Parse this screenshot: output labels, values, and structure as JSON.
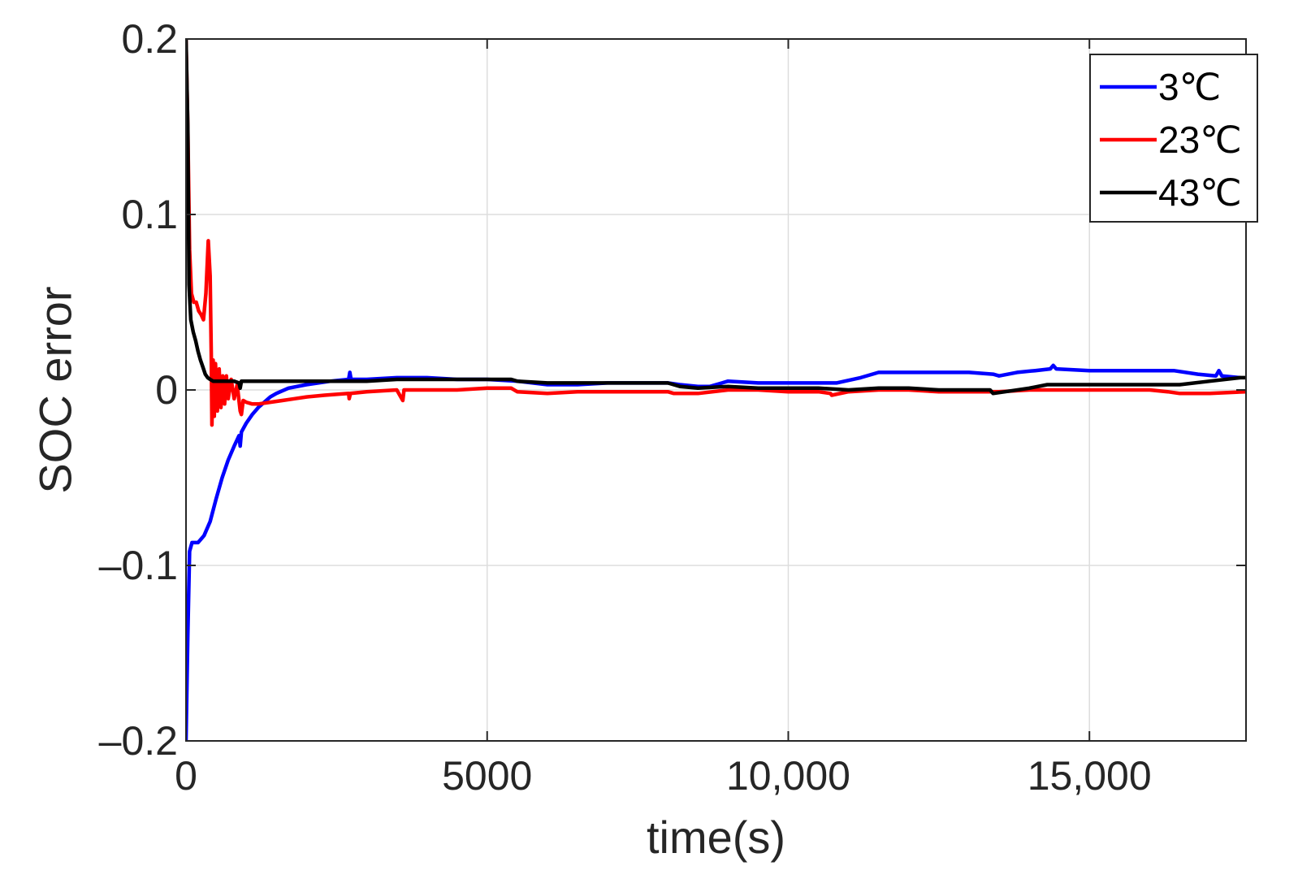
{
  "chart_data": {
    "type": "line",
    "title": "",
    "xlabel": "time(s)",
    "ylabel": "SOC error",
    "xlim": [
      0,
      17600
    ],
    "ylim": [
      -0.2,
      0.2
    ],
    "grid": true,
    "legend_position": "top-right",
    "x_ticks": [
      {
        "value": 0,
        "label": "0"
      },
      {
        "value": 5000,
        "label": "5000"
      },
      {
        "value": 10000,
        "label": "10,000"
      },
      {
        "value": 15000,
        "label": "15,000"
      }
    ],
    "y_ticks": [
      {
        "value": 0.2,
        "label": "0.2"
      },
      {
        "value": 0.1,
        "label": "0.1"
      },
      {
        "value": 0,
        "label": "0"
      },
      {
        "value": -0.1,
        "label": "–0.1"
      },
      {
        "value": -0.2,
        "label": "–0.2"
      }
    ],
    "series": [
      {
        "name": "3℃",
        "color": "#0000ff",
        "points": [
          [
            0,
            -0.2
          ],
          [
            30,
            -0.14
          ],
          [
            60,
            -0.092
          ],
          [
            100,
            -0.087
          ],
          [
            200,
            -0.087
          ],
          [
            300,
            -0.083
          ],
          [
            400,
            -0.075
          ],
          [
            500,
            -0.062
          ],
          [
            600,
            -0.05
          ],
          [
            700,
            -0.04
          ],
          [
            800,
            -0.032
          ],
          [
            880,
            -0.026
          ],
          [
            900,
            -0.032
          ],
          [
            920,
            -0.024
          ],
          [
            1000,
            -0.019
          ],
          [
            1100,
            -0.014
          ],
          [
            1200,
            -0.01
          ],
          [
            1300,
            -0.007
          ],
          [
            1400,
            -0.004
          ],
          [
            1500,
            -0.002
          ],
          [
            1700,
            0.001
          ],
          [
            2000,
            0.003
          ],
          [
            2400,
            0.005
          ],
          [
            2700,
            0.006
          ],
          [
            2720,
            0.01
          ],
          [
            2740,
            0.006
          ],
          [
            3000,
            0.006
          ],
          [
            3500,
            0.007
          ],
          [
            4000,
            0.007
          ],
          [
            4500,
            0.006
          ],
          [
            5000,
            0.006
          ],
          [
            5500,
            0.005
          ],
          [
            6000,
            0.003
          ],
          [
            6500,
            0.003
          ],
          [
            7000,
            0.004
          ],
          [
            7500,
            0.004
          ],
          [
            8000,
            0.004
          ],
          [
            8200,
            0.003
          ],
          [
            8500,
            0.002
          ],
          [
            8700,
            0.002
          ],
          [
            9000,
            0.005
          ],
          [
            9500,
            0.004
          ],
          [
            10000,
            0.004
          ],
          [
            10500,
            0.004
          ],
          [
            10800,
            0.004
          ],
          [
            11200,
            0.007
          ],
          [
            11500,
            0.01
          ],
          [
            12000,
            0.01
          ],
          [
            12500,
            0.01
          ],
          [
            13000,
            0.01
          ],
          [
            13400,
            0.009
          ],
          [
            13500,
            0.008
          ],
          [
            13800,
            0.01
          ],
          [
            14100,
            0.011
          ],
          [
            14350,
            0.012
          ],
          [
            14400,
            0.014
          ],
          [
            14450,
            0.012
          ],
          [
            15000,
            0.011
          ],
          [
            15500,
            0.011
          ],
          [
            16000,
            0.011
          ],
          [
            16400,
            0.011
          ],
          [
            16800,
            0.009
          ],
          [
            17100,
            0.008
          ],
          [
            17150,
            0.011
          ],
          [
            17200,
            0.008
          ],
          [
            17500,
            0.007
          ]
        ]
      },
      {
        "name": "23℃",
        "color": "#ff0000",
        "points": [
          [
            0,
            0.2
          ],
          [
            30,
            0.15
          ],
          [
            60,
            0.08
          ],
          [
            90,
            0.055
          ],
          [
            130,
            0.05
          ],
          [
            170,
            0.05
          ],
          [
            210,
            0.045
          ],
          [
            250,
            0.043
          ],
          [
            290,
            0.04
          ],
          [
            330,
            0.055
          ],
          [
            370,
            0.085
          ],
          [
            400,
            0.065
          ],
          [
            420,
            0.02
          ],
          [
            430,
            -0.02
          ],
          [
            450,
            0.017
          ],
          [
            470,
            -0.015
          ],
          [
            490,
            0.015
          ],
          [
            520,
            -0.012
          ],
          [
            550,
            0.012
          ],
          [
            580,
            -0.01
          ],
          [
            610,
            0.008
          ],
          [
            640,
            -0.008
          ],
          [
            670,
            0.008
          ],
          [
            700,
            -0.005
          ],
          [
            750,
            0.006
          ],
          [
            800,
            -0.005
          ],
          [
            850,
            0.003
          ],
          [
            900,
            -0.012
          ],
          [
            920,
            -0.014
          ],
          [
            950,
            -0.006
          ],
          [
            1000,
            -0.007
          ],
          [
            1100,
            -0.008
          ],
          [
            1200,
            -0.008
          ],
          [
            1400,
            -0.007
          ],
          [
            1600,
            -0.006
          ],
          [
            1800,
            -0.005
          ],
          [
            2000,
            -0.004
          ],
          [
            2300,
            -0.003
          ],
          [
            2700,
            -0.002
          ],
          [
            2710,
            -0.005
          ],
          [
            2730,
            -0.002
          ],
          [
            3000,
            -0.001
          ],
          [
            3500,
            0
          ],
          [
            3600,
            -0.006
          ],
          [
            3620,
            0
          ],
          [
            4000,
            0
          ],
          [
            4500,
            0
          ],
          [
            5000,
            0.001
          ],
          [
            5400,
            0.001
          ],
          [
            5500,
            -0.001
          ],
          [
            6000,
            -0.002
          ],
          [
            6500,
            -0.001
          ],
          [
            7000,
            -0.001
          ],
          [
            7500,
            -0.001
          ],
          [
            8000,
            -0.001
          ],
          [
            8100,
            -0.002
          ],
          [
            8500,
            -0.002
          ],
          [
            9000,
            0
          ],
          [
            9500,
            0
          ],
          [
            10000,
            -0.001
          ],
          [
            10500,
            -0.001
          ],
          [
            10700,
            -0.002
          ],
          [
            10720,
            -0.003
          ],
          [
            11000,
            -0.001
          ],
          [
            11500,
            0
          ],
          [
            12000,
            0
          ],
          [
            12500,
            -0.001
          ],
          [
            13000,
            -0.001
          ],
          [
            13500,
            -0.001
          ],
          [
            14000,
            0
          ],
          [
            14500,
            0
          ],
          [
            15000,
            0
          ],
          [
            15500,
            0
          ],
          [
            16000,
            0
          ],
          [
            16300,
            -0.001
          ],
          [
            16500,
            -0.002
          ],
          [
            17000,
            -0.002
          ],
          [
            17600,
            -0.001
          ]
        ]
      },
      {
        "name": "43℃",
        "color": "#000000",
        "points": [
          [
            0,
            0.2
          ],
          [
            30,
            0.15
          ],
          [
            50,
            0.06
          ],
          [
            80,
            0.04
          ],
          [
            120,
            0.033
          ],
          [
            160,
            0.028
          ],
          [
            200,
            0.022
          ],
          [
            240,
            0.017
          ],
          [
            280,
            0.013
          ],
          [
            320,
            0.009
          ],
          [
            360,
            0.007
          ],
          [
            400,
            0.006
          ],
          [
            450,
            0.005
          ],
          [
            500,
            0.005
          ],
          [
            600,
            0.005
          ],
          [
            800,
            0.005
          ],
          [
            880,
            0.004
          ],
          [
            900,
            0.001
          ],
          [
            920,
            0.005
          ],
          [
            1000,
            0.005
          ],
          [
            1500,
            0.005
          ],
          [
            2000,
            0.005
          ],
          [
            2500,
            0.005
          ],
          [
            3000,
            0.005
          ],
          [
            3500,
            0.006
          ],
          [
            4000,
            0.006
          ],
          [
            4500,
            0.006
          ],
          [
            5000,
            0.006
          ],
          [
            5400,
            0.006
          ],
          [
            5500,
            0.005
          ],
          [
            6000,
            0.004
          ],
          [
            6500,
            0.004
          ],
          [
            7000,
            0.004
          ],
          [
            7500,
            0.004
          ],
          [
            8000,
            0.004
          ],
          [
            8200,
            0.002
          ],
          [
            8500,
            0.001
          ],
          [
            9000,
            0.002
          ],
          [
            9500,
            0.001
          ],
          [
            10000,
            0.001
          ],
          [
            10500,
            0.001
          ],
          [
            11000,
            0
          ],
          [
            11500,
            0.001
          ],
          [
            12000,
            0.001
          ],
          [
            12500,
            0
          ],
          [
            13000,
            0
          ],
          [
            13350,
            0
          ],
          [
            13400,
            -0.002
          ],
          [
            13600,
            -0.001
          ],
          [
            14000,
            0.001
          ],
          [
            14300,
            0.003
          ],
          [
            15000,
            0.003
          ],
          [
            15500,
            0.003
          ],
          [
            16000,
            0.003
          ],
          [
            16500,
            0.003
          ],
          [
            17000,
            0.005
          ],
          [
            17500,
            0.007
          ],
          [
            17600,
            0.007
          ]
        ]
      }
    ]
  }
}
